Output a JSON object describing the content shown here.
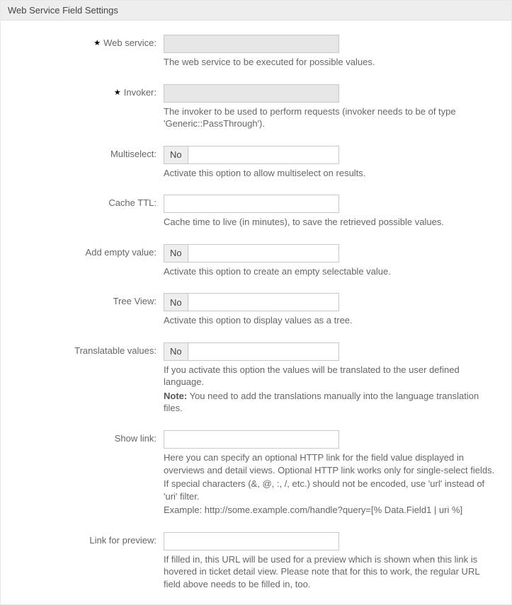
{
  "panel": {
    "title": "Web Service Field Settings"
  },
  "fields": {
    "webservice": {
      "label": "Web service:",
      "desc": "The web service to be executed for possible values."
    },
    "invoker": {
      "label": "Invoker:",
      "desc": "The invoker to be used to perform requests (invoker needs to be of type 'Generic::PassThrough')."
    },
    "multiselect": {
      "label": "Multiselect:",
      "value": "No",
      "desc": "Activate this option to allow multiselect on results."
    },
    "cachettl": {
      "label": "Cache TTL:",
      "desc": "Cache time to live (in minutes), to save the retrieved possible values."
    },
    "addempty": {
      "label": "Add empty value:",
      "value": "No",
      "desc": "Activate this option to create an empty selectable value."
    },
    "treeview": {
      "label": "Tree View:",
      "value": "No",
      "desc": "Activate this option to display values as a tree."
    },
    "translatable": {
      "label": "Translatable values:",
      "value": "No",
      "desc": "If you activate this option the values will be translated to the user defined language.",
      "note_label": "Note:",
      "note": " You need to add the translations manually into the language translation files."
    },
    "showlink": {
      "label": "Show link:",
      "desc1": "Here you can specify an optional HTTP link for the field value displayed in overviews and detail views. Optional HTTP link works only for single-select fields.",
      "desc2": "If special characters (&, @, :, /, etc.) should not be encoded, use 'url' instead of 'uri' filter.",
      "desc3": "Example: http://some.example.com/handle?query=[% Data.Field1 | uri %]"
    },
    "linkpreview": {
      "label": "Link for preview:",
      "desc": "If filled in, this URL will be used for a preview which is shown when this link is hovered in ticket detail view. Please note that for this to work, the regular URL field above needs to be filled in, too."
    }
  }
}
